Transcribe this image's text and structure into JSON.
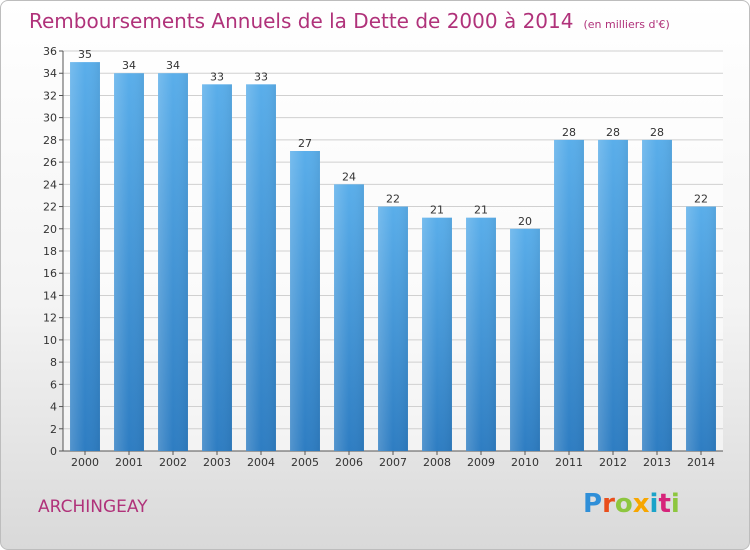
{
  "header": {
    "title": "Remboursements Annuels de la Dette de 2000 à 2014",
    "subtitle": "(en milliers d'€)"
  },
  "footer": {
    "place": "ARCHINGEAY",
    "logo_letters": [
      "P",
      "r",
      "o",
      "x",
      "i",
      "t",
      "i"
    ]
  },
  "colors": {
    "title": "#b0327a",
    "bar_top": "#5aaeea",
    "bar_bottom": "#2e7dc2",
    "grid": "#d0d0d0"
  },
  "chart_data": {
    "type": "bar",
    "title": "Remboursements Annuels de la Dette de 2000 à 2014",
    "xlabel": "",
    "ylabel": "",
    "categories": [
      "2000",
      "2001",
      "2002",
      "2003",
      "2004",
      "2005",
      "2006",
      "2007",
      "2008",
      "2009",
      "2010",
      "2011",
      "2012",
      "2013",
      "2014"
    ],
    "values": [
      35,
      34,
      34,
      33,
      33,
      27,
      24,
      22,
      21,
      21,
      20,
      28,
      28,
      28,
      22
    ],
    "ylim": [
      0,
      36
    ],
    "yticks": [
      0,
      2,
      4,
      6,
      8,
      10,
      12,
      14,
      16,
      18,
      20,
      22,
      24,
      26,
      28,
      30,
      32,
      34,
      36
    ],
    "grid": true
  }
}
